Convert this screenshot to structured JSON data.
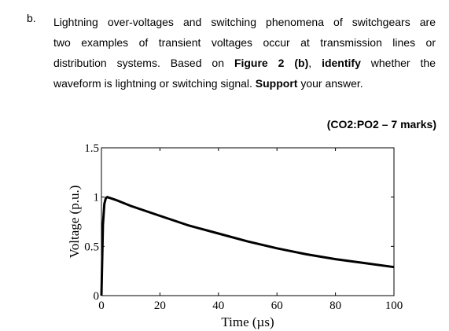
{
  "question": {
    "label": "b.",
    "line1": "Lightning over-voltages and switching phenomena of switchgears are",
    "line2": "two examples of transient voltages occur at transmission lines or",
    "line3_a": "distribution systems. Based on ",
    "line3_b": "Figure 2 (b)",
    "line3_c": ", ",
    "line3_d": "identify",
    "line3_e": " whether the",
    "line4_a": "waveform is lightning or switching signal. ",
    "line4_b": "Support",
    "line4_c": " your answer.",
    "marks": "(CO2:PO2 – 7 marks)"
  },
  "chart_data": {
    "type": "line",
    "xlabel": "Time (µs)",
    "ylabel": "Voltage (p.u.)",
    "xlim": [
      0,
      100
    ],
    "ylim": [
      0,
      1.5
    ],
    "xticks": [
      "0",
      "20",
      "40",
      "60",
      "80",
      "100"
    ],
    "yticks": [
      "0",
      "0.5",
      "1",
      "1.5"
    ],
    "grid": false,
    "series": [
      {
        "x": [
          0,
          0.5,
          1,
          1.5,
          2,
          3,
          5,
          10,
          20,
          30,
          40,
          50,
          60,
          70,
          80,
          90,
          100
        ],
        "y": [
          0,
          0.72,
          0.93,
          0.99,
          1.0,
          0.99,
          0.97,
          0.91,
          0.81,
          0.71,
          0.63,
          0.55,
          0.48,
          0.42,
          0.37,
          0.33,
          0.29
        ],
        "color": "#000000"
      }
    ]
  }
}
